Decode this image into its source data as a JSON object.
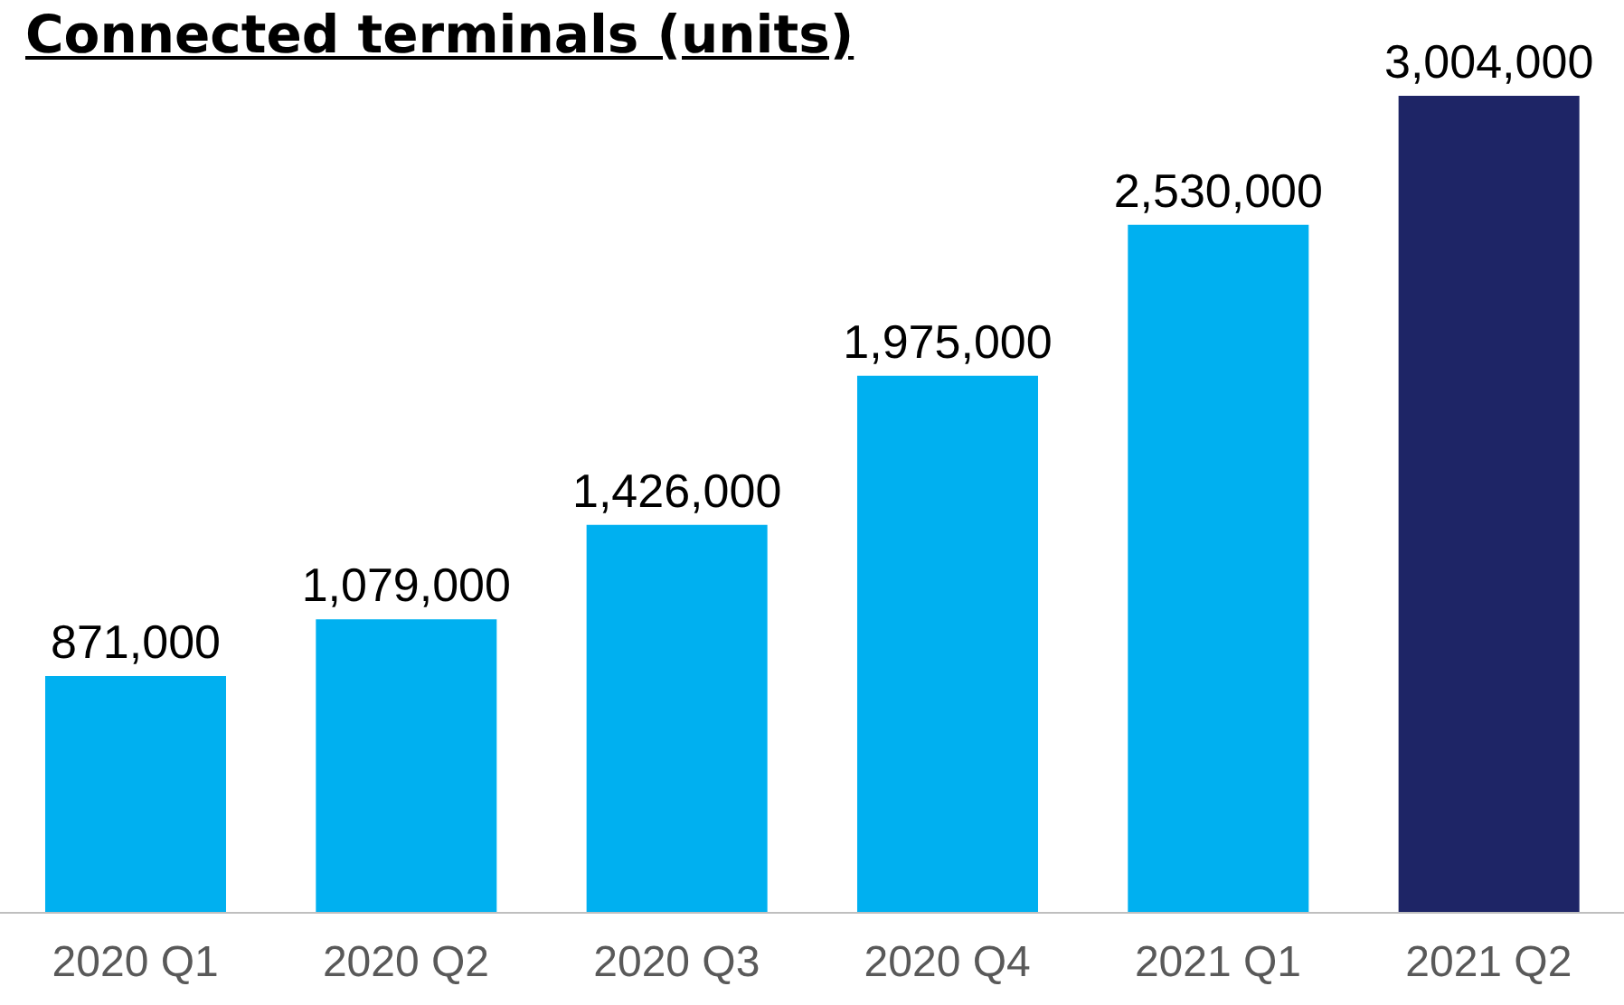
{
  "chart_data": {
    "type": "bar",
    "title": "Connected terminals (units)",
    "categories": [
      "2020 Q1",
      "2020 Q2",
      "2020 Q3",
      "2020 Q4",
      "2021 Q1",
      "2021 Q2"
    ],
    "values": [
      871000,
      1079000,
      1426000,
      1975000,
      2530000,
      3004000
    ],
    "colors": [
      "#00b0f0",
      "#00b0f0",
      "#00b0f0",
      "#00b0f0",
      "#00b0f0",
      "#1e2566"
    ],
    "value_labels": [
      "871,000",
      "1,079,000",
      "1,426,000",
      "1,975,000",
      "2,530,000",
      "3,004,000"
    ],
    "grid": false,
    "legend": false
  }
}
